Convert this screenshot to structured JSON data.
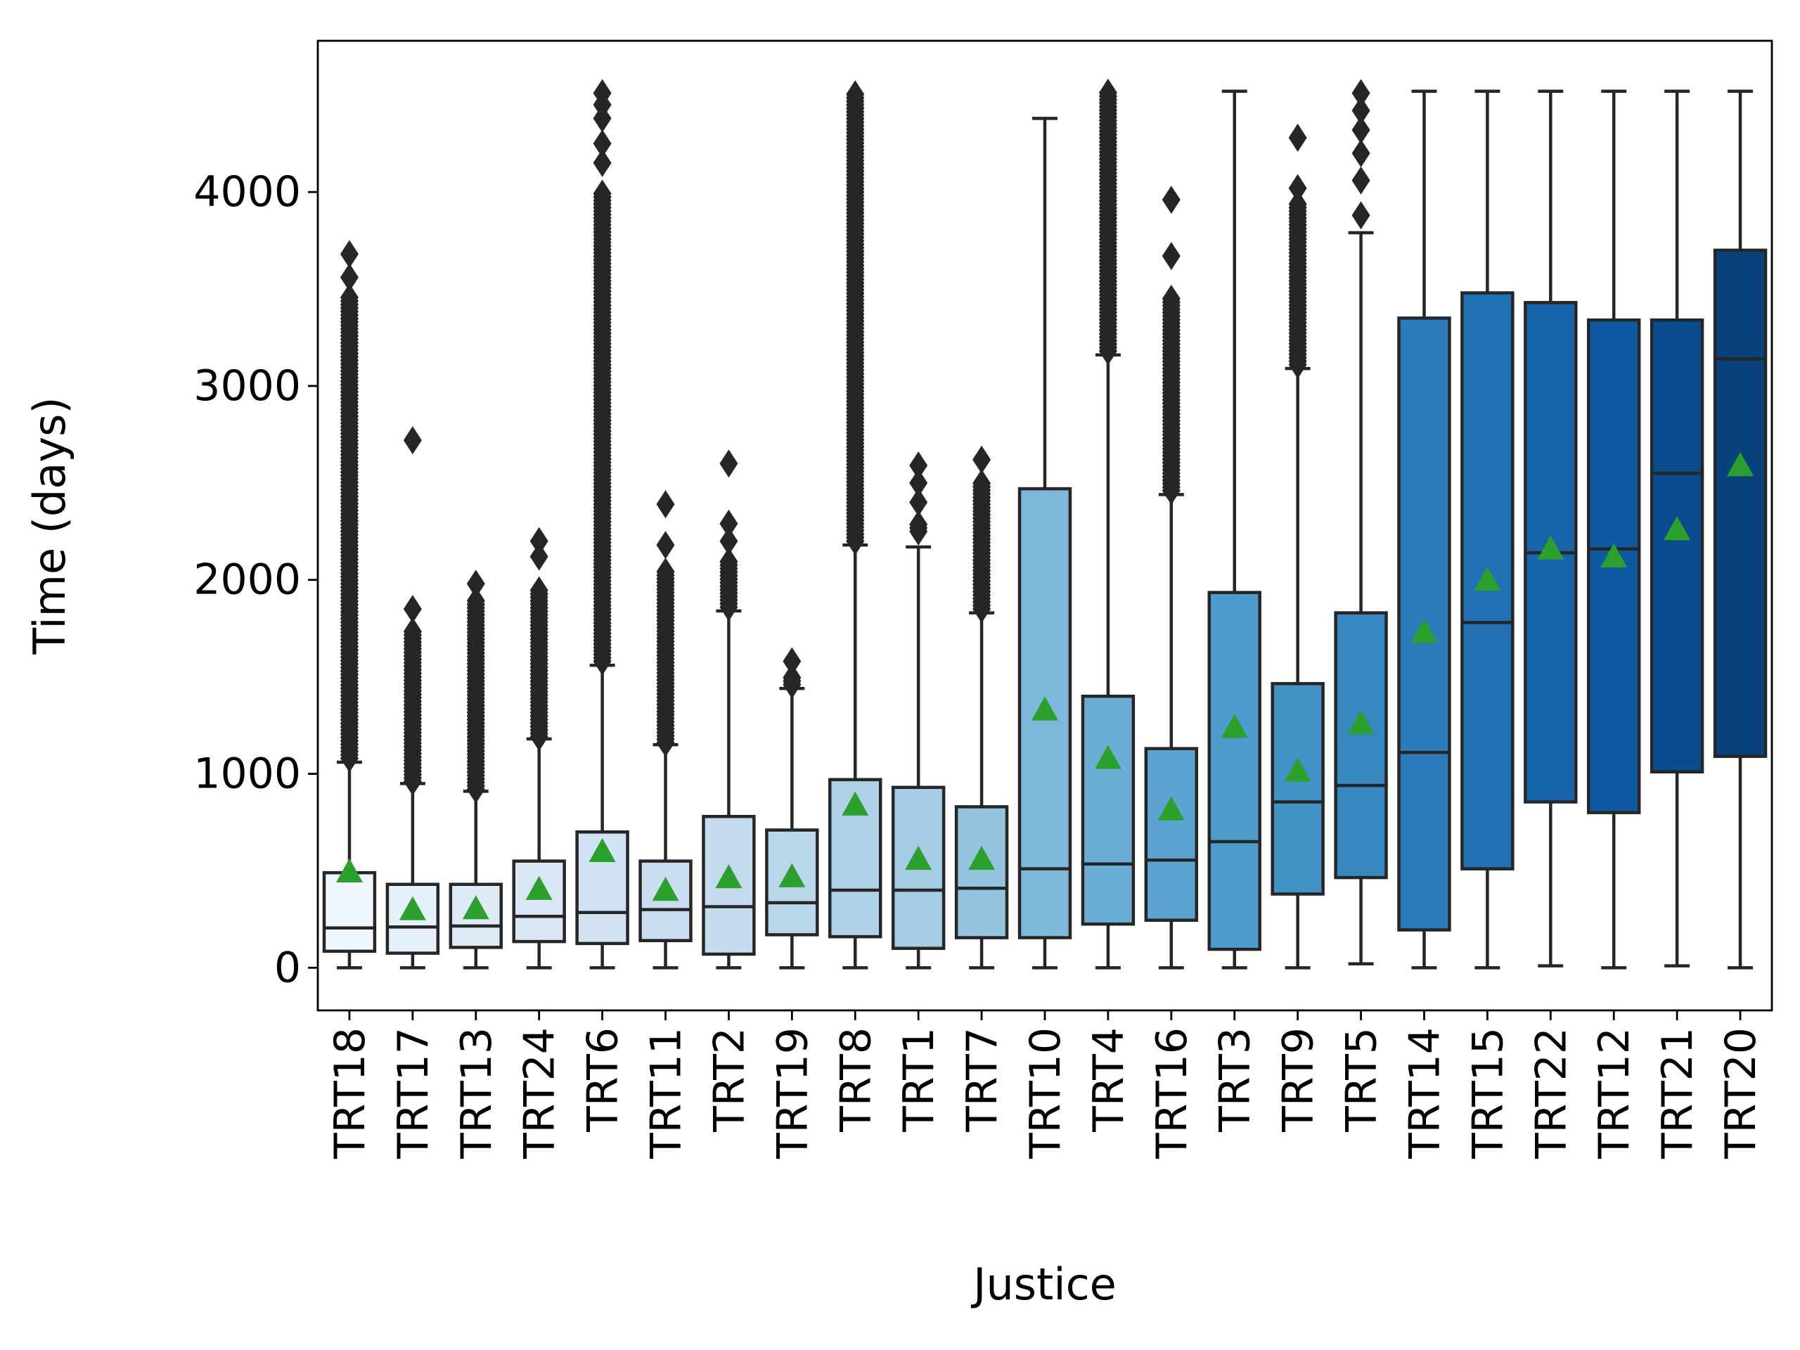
{
  "chart_data": {
    "type": "box",
    "xlabel": "Justice",
    "ylabel": "Time (days)",
    "ylim": [
      -220,
      4780
    ],
    "yticks": [
      0,
      1000,
      2000,
      3000,
      4000
    ],
    "grid": false,
    "legend": "none",
    "mean_marker": {
      "shape": "triangle",
      "color": "#2ca02c"
    },
    "categories": [
      "TRT18",
      "TRT17",
      "TRT13",
      "TRT24",
      "TRT6",
      "TRT11",
      "TRT2",
      "TRT19",
      "TRT8",
      "TRT1",
      "TRT7",
      "TRT10",
      "TRT4",
      "TRT16",
      "TRT3",
      "TRT9",
      "TRT5",
      "TRT14",
      "TRT15",
      "TRT22",
      "TRT12",
      "TRT21",
      "TRT20"
    ],
    "boxes": [
      {
        "q1": 85,
        "median": 205,
        "q3": 490,
        "whisker_low": 0,
        "whisker_high": 1060,
        "mean": 495,
        "color": "#f0f6fd",
        "outliers": {
          "from": 1080,
          "to": 3460,
          "extra": [
            3560,
            3680
          ]
        }
      },
      {
        "q1": 75,
        "median": 210,
        "q3": 430,
        "whisker_low": 0,
        "whisker_high": 950,
        "mean": 300,
        "color": "#e6f0fa",
        "outliers": {
          "from": 960,
          "to": 1750,
          "extra": [
            1850,
            2720
          ]
        }
      },
      {
        "q1": 105,
        "median": 215,
        "q3": 430,
        "whisker_low": 0,
        "whisker_high": 910,
        "mean": 305,
        "color": "#deebf7",
        "outliers": {
          "from": 920,
          "to": 1900,
          "extra": [
            1980
          ]
        }
      },
      {
        "q1": 135,
        "median": 265,
        "q3": 550,
        "whisker_low": 0,
        "whisker_high": 1180,
        "mean": 405,
        "color": "#d9e7f5",
        "outliers": {
          "from": 1190,
          "to": 1950,
          "extra": [
            2120,
            2200
          ]
        }
      },
      {
        "q1": 125,
        "median": 285,
        "q3": 700,
        "whisker_low": 0,
        "whisker_high": 1560,
        "mean": 600,
        "color": "#d1e2f3",
        "outliers": {
          "from": 1580,
          "to": 4000,
          "extra": [
            4150,
            4250,
            4380,
            4450,
            4510
          ]
        }
      },
      {
        "q1": 140,
        "median": 300,
        "q3": 550,
        "whisker_low": 0,
        "whisker_high": 1150,
        "mean": 400,
        "color": "#cbdef1",
        "outliers": {
          "from": 1160,
          "to": 2050,
          "extra": [
            2180,
            2390
          ]
        }
      },
      {
        "q1": 70,
        "median": 315,
        "q3": 780,
        "whisker_low": 0,
        "whisker_high": 1840,
        "mean": 465,
        "color": "#c4daee",
        "outliers": {
          "from": 1860,
          "to": 2100,
          "extra": [
            2200,
            2290,
            2600
          ]
        }
      },
      {
        "q1": 170,
        "median": 335,
        "q3": 710,
        "whisker_low": 0,
        "whisker_high": 1440,
        "mean": 470,
        "color": "#bad6eb",
        "outliers": {
          "from": 1460,
          "to": 1500,
          "extra": [
            1580
          ]
        }
      },
      {
        "q1": 160,
        "median": 400,
        "q3": 970,
        "whisker_low": 0,
        "whisker_high": 2180,
        "mean": 840,
        "color": "#b0d2e7",
        "outliers": {
          "from": 2200,
          "to": 4520,
          "extra": []
        }
      },
      {
        "q1": 100,
        "median": 400,
        "q3": 930,
        "whisker_low": 0,
        "whisker_high": 2170,
        "mean": 560,
        "color": "#a4cce3",
        "outliers": {
          "from": 2250,
          "to": 2300,
          "extra": [
            2400,
            2500,
            2590
          ]
        }
      },
      {
        "q1": 155,
        "median": 410,
        "q3": 830,
        "whisker_low": 0,
        "whisker_high": 1830,
        "mean": 560,
        "color": "#94c4df",
        "outliers": {
          "from": 1850,
          "to": 2500,
          "extra": [
            2620
          ]
        }
      },
      {
        "q1": 155,
        "median": 510,
        "q3": 2470,
        "whisker_low": 0,
        "whisker_high": 4380,
        "mean": 1330,
        "color": "#7db8da",
        "outliers": {
          "from": 0,
          "to": 0,
          "extra": []
        }
      },
      {
        "q1": 225,
        "median": 535,
        "q3": 1400,
        "whisker_low": 0,
        "whisker_high": 3160,
        "mean": 1080,
        "color": "#6aaed6",
        "outliers": {
          "from": 3180,
          "to": 4520,
          "extra": []
        }
      },
      {
        "q1": 245,
        "median": 555,
        "q3": 1130,
        "whisker_low": 0,
        "whisker_high": 2440,
        "mean": 815,
        "color": "#5ba3d0",
        "outliers": {
          "from": 2460,
          "to": 3450,
          "extra": [
            3670,
            3960
          ]
        }
      },
      {
        "q1": 95,
        "median": 650,
        "q3": 1935,
        "whisker_low": 0,
        "whisker_high": 4520,
        "mean": 1240,
        "color": "#4f9bcb",
        "outliers": {
          "from": 0,
          "to": 0,
          "extra": []
        }
      },
      {
        "q1": 380,
        "median": 855,
        "q3": 1465,
        "whisker_low": 0,
        "whisker_high": 3090,
        "mean": 1015,
        "color": "#4292c6",
        "outliers": {
          "from": 3110,
          "to": 3950,
          "extra": [
            4020,
            4280
          ]
        }
      },
      {
        "q1": 465,
        "median": 940,
        "q3": 1830,
        "whisker_low": 20,
        "whisker_high": 3790,
        "mean": 1260,
        "color": "#3787c0",
        "outliers": {
          "from": 0,
          "to": 0,
          "extra": [
            3880,
            4060,
            4200,
            4320,
            4420,
            4510
          ]
        }
      },
      {
        "q1": 195,
        "median": 1110,
        "q3": 3350,
        "whisker_low": 0,
        "whisker_high": 4520,
        "mean": 1730,
        "color": "#2b7bba",
        "outliers": {
          "from": 0,
          "to": 0,
          "extra": []
        }
      },
      {
        "q1": 510,
        "median": 1780,
        "q3": 3480,
        "whisker_low": 0,
        "whisker_high": 4520,
        "mean": 2000,
        "color": "#2170b4",
        "outliers": {
          "from": 0,
          "to": 0,
          "extra": []
        }
      },
      {
        "q1": 855,
        "median": 2140,
        "q3": 3430,
        "whisker_low": 10,
        "whisker_high": 4520,
        "mean": 2160,
        "color": "#1764ab",
        "outliers": {
          "from": 0,
          "to": 0,
          "extra": []
        }
      },
      {
        "q1": 800,
        "median": 2160,
        "q3": 3340,
        "whisker_low": 0,
        "whisker_high": 4520,
        "mean": 2120,
        "color": "#0e59a2",
        "outliers": {
          "from": 0,
          "to": 0,
          "extra": []
        }
      },
      {
        "q1": 1010,
        "median": 2550,
        "q3": 3340,
        "whisker_low": 10,
        "whisker_high": 4520,
        "mean": 2260,
        "color": "#0a4c8f",
        "outliers": {
          "from": 0,
          "to": 0,
          "extra": []
        }
      },
      {
        "q1": 1090,
        "median": 3140,
        "q3": 3700,
        "whisker_low": 0,
        "whisker_high": 4520,
        "mean": 2590,
        "color": "#08427d",
        "outliers": {
          "from": 0,
          "to": 0,
          "extra": []
        }
      }
    ]
  }
}
